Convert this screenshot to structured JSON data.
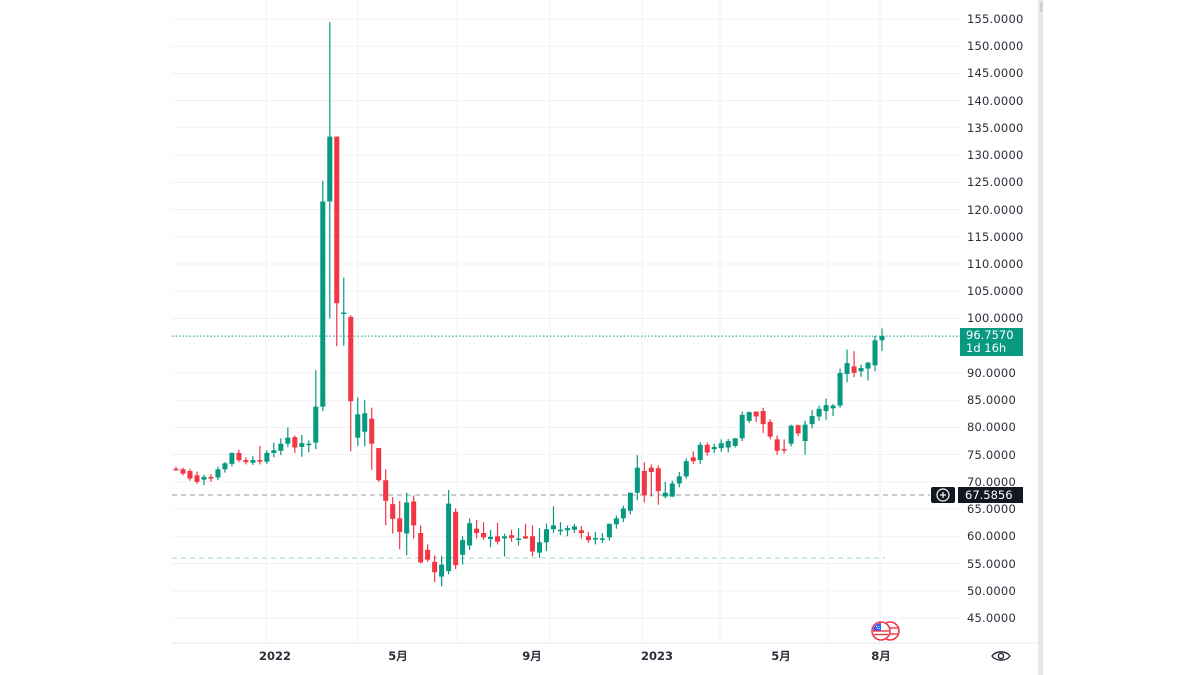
{
  "price_scale": {
    "labels": [
      "155.0000",
      "150.0000",
      "145.0000",
      "140.0000",
      "135.0000",
      "130.0000",
      "125.0000",
      "120.0000",
      "115.0000",
      "110.0000",
      "105.0000",
      "100.0000",
      "90.0000",
      "85.0000",
      "80.0000",
      "75.0000",
      "70.0000",
      "65.0000",
      "60.0000",
      "55.0000",
      "50.0000",
      "45.0000"
    ],
    "last_price": "96.7570",
    "countdown": "1d 16h",
    "crosshair_price": "67.5856",
    "add_alert_icon": "plus-circle-icon"
  },
  "time_scale": {
    "labels": [
      "2022",
      "5月",
      "9月",
      "2023",
      "5月",
      "8月"
    ],
    "settings_icon": "eye-icon"
  },
  "colors": {
    "up": "#089981",
    "down": "#f23645",
    "grid": "#f0f1f4",
    "last_price_line": "#089981",
    "crosshair_line": "#9598a1",
    "level_line": "#a7d3cc",
    "text": "#2a2e39"
  },
  "markers": {
    "event_flag_icon": "us-flag-economic-event-icon"
  },
  "chart_data": {
    "type": "candlestick",
    "title": "",
    "xlabel": "",
    "ylabel": "",
    "ylim": [
      42,
      157
    ],
    "grid": true,
    "interval": "weekly",
    "x_ticks": [
      "2022",
      "5月",
      "9月",
      "2023",
      "5月",
      "8月"
    ],
    "y_ticks": [
      45,
      50,
      55,
      60,
      65,
      70,
      75,
      80,
      85,
      90,
      100,
      105,
      110,
      115,
      120,
      125,
      130,
      135,
      140,
      145,
      150,
      155
    ],
    "horizontal_lines": [
      {
        "name": "last_price",
        "value": 96.757,
        "style": "dotted",
        "color": "#089981"
      },
      {
        "name": "crosshair",
        "value": 67.5856,
        "style": "dashed",
        "color": "#9598a1"
      },
      {
        "name": "level",
        "value": 56.0,
        "style": "dashed",
        "color": "#a7d3cc"
      }
    ],
    "candles": [
      {
        "o": 72.4,
        "h": 72.8,
        "l": 72.0,
        "c": 72.2
      },
      {
        "o": 72.3,
        "h": 72.6,
        "l": 71.2,
        "c": 71.5
      },
      {
        "o": 72.0,
        "h": 72.4,
        "l": 70.2,
        "c": 70.6
      },
      {
        "o": 71.2,
        "h": 71.9,
        "l": 69.6,
        "c": 70.0
      },
      {
        "o": 70.4,
        "h": 71.3,
        "l": 69.4,
        "c": 70.9
      },
      {
        "o": 70.9,
        "h": 71.4,
        "l": 70.0,
        "c": 70.6
      },
      {
        "o": 70.8,
        "h": 72.8,
        "l": 70.3,
        "c": 72.3
      },
      {
        "o": 72.3,
        "h": 73.6,
        "l": 71.7,
        "c": 73.4
      },
      {
        "o": 73.3,
        "h": 75.4,
        "l": 72.8,
        "c": 75.3
      },
      {
        "o": 75.3,
        "h": 75.9,
        "l": 73.6,
        "c": 74.0
      },
      {
        "o": 74.0,
        "h": 74.5,
        "l": 73.2,
        "c": 73.6
      },
      {
        "o": 73.5,
        "h": 74.7,
        "l": 73.1,
        "c": 74.0
      },
      {
        "o": 74.0,
        "h": 76.6,
        "l": 73.2,
        "c": 73.7
      },
      {
        "o": 73.7,
        "h": 75.8,
        "l": 73.3,
        "c": 75.3
      },
      {
        "o": 75.3,
        "h": 77.2,
        "l": 74.5,
        "c": 75.8
      },
      {
        "o": 75.7,
        "h": 78.0,
        "l": 74.9,
        "c": 77.0
      },
      {
        "o": 77.0,
        "h": 80.0,
        "l": 76.4,
        "c": 78.1
      },
      {
        "o": 78.2,
        "h": 78.5,
        "l": 75.3,
        "c": 76.3
      },
      {
        "o": 76.4,
        "h": 78.6,
        "l": 74.6,
        "c": 77.1
      },
      {
        "o": 76.9,
        "h": 77.6,
        "l": 75.4,
        "c": 77.0
      },
      {
        "o": 77.2,
        "h": 90.5,
        "l": 76.0,
        "c": 83.8
      },
      {
        "o": 83.8,
        "h": 125.3,
        "l": 83.0,
        "c": 121.5
      },
      {
        "o": 121.5,
        "h": 154.4,
        "l": 100.0,
        "c": 133.4
      },
      {
        "o": 133.4,
        "h": 133.4,
        "l": 94.9,
        "c": 102.8
      },
      {
        "o": 101.0,
        "h": 107.5,
        "l": 95.0,
        "c": 101.1
      },
      {
        "o": 100.3,
        "h": 100.6,
        "l": 75.6,
        "c": 84.8
      },
      {
        "o": 78.1,
        "h": 85.5,
        "l": 76.6,
        "c": 82.4
      },
      {
        "o": 79.2,
        "h": 85.0,
        "l": 76.5,
        "c": 82.6
      },
      {
        "o": 81.6,
        "h": 83.6,
        "l": 72.2,
        "c": 77.0
      },
      {
        "o": 76.2,
        "h": 74.8,
        "l": 70.0,
        "c": 70.3
      },
      {
        "o": 70.3,
        "h": 72.3,
        "l": 62.0,
        "c": 66.5
      },
      {
        "o": 65.9,
        "h": 67.2,
        "l": 60.5,
        "c": 63.2
      },
      {
        "o": 63.3,
        "h": 66.5,
        "l": 57.6,
        "c": 60.8
      },
      {
        "o": 60.5,
        "h": 68.0,
        "l": 56.5,
        "c": 66.2
      },
      {
        "o": 66.4,
        "h": 67.5,
        "l": 59.6,
        "c": 62.0
      },
      {
        "o": 60.6,
        "h": 62.0,
        "l": 55.0,
        "c": 55.2
      },
      {
        "o": 57.5,
        "h": 58.5,
        "l": 55.3,
        "c": 55.7
      },
      {
        "o": 55.3,
        "h": 56.5,
        "l": 51.6,
        "c": 53.4
      },
      {
        "o": 52.6,
        "h": 56.4,
        "l": 50.8,
        "c": 54.8
      },
      {
        "o": 53.6,
        "h": 68.5,
        "l": 53.0,
        "c": 66.0
      },
      {
        "o": 64.5,
        "h": 65.1,
        "l": 54.0,
        "c": 54.7
      },
      {
        "o": 56.6,
        "h": 60.0,
        "l": 54.8,
        "c": 59.3
      },
      {
        "o": 58.3,
        "h": 63.3,
        "l": 57.5,
        "c": 62.4
      },
      {
        "o": 61.4,
        "h": 63.0,
        "l": 59.6,
        "c": 60.6
      },
      {
        "o": 60.6,
        "h": 62.6,
        "l": 59.3,
        "c": 59.8
      },
      {
        "o": 59.5,
        "h": 61.2,
        "l": 58.0,
        "c": 59.9
      },
      {
        "o": 60.0,
        "h": 62.5,
        "l": 58.5,
        "c": 59.0
      },
      {
        "o": 59.6,
        "h": 60.5,
        "l": 56.3,
        "c": 60.0
      },
      {
        "o": 60.2,
        "h": 61.2,
        "l": 59.0,
        "c": 59.7
      },
      {
        "o": 59.5,
        "h": 61.5,
        "l": 58.3,
        "c": 59.6
      },
      {
        "o": 60.0,
        "h": 62.3,
        "l": 59.5,
        "c": 59.6
      },
      {
        "o": 60.0,
        "h": 62.0,
        "l": 56.3,
        "c": 57.2
      },
      {
        "o": 57.0,
        "h": 61.5,
        "l": 56.0,
        "c": 58.9
      },
      {
        "o": 58.9,
        "h": 62.3,
        "l": 57.3,
        "c": 61.3
      },
      {
        "o": 61.3,
        "h": 65.5,
        "l": 60.6,
        "c": 62.0
      },
      {
        "o": 61.0,
        "h": 62.6,
        "l": 60.2,
        "c": 61.2
      },
      {
        "o": 61.1,
        "h": 62.0,
        "l": 60.0,
        "c": 61.5
      },
      {
        "o": 61.2,
        "h": 62.3,
        "l": 60.6,
        "c": 61.8
      },
      {
        "o": 61.1,
        "h": 61.9,
        "l": 59.6,
        "c": 60.6
      },
      {
        "o": 60.0,
        "h": 60.8,
        "l": 58.8,
        "c": 59.3
      },
      {
        "o": 59.4,
        "h": 60.8,
        "l": 58.5,
        "c": 59.7
      },
      {
        "o": 59.5,
        "h": 60.6,
        "l": 58.8,
        "c": 59.6
      },
      {
        "o": 59.8,
        "h": 62.3,
        "l": 59.2,
        "c": 62.3
      },
      {
        "o": 62.2,
        "h": 63.8,
        "l": 61.4,
        "c": 63.3
      },
      {
        "o": 63.3,
        "h": 65.6,
        "l": 62.6,
        "c": 65.1
      },
      {
        "o": 64.7,
        "h": 68.0,
        "l": 64.0,
        "c": 68.0
      },
      {
        "o": 68.0,
        "h": 74.9,
        "l": 66.6,
        "c": 72.6
      },
      {
        "o": 72.0,
        "h": 73.6,
        "l": 66.2,
        "c": 67.5
      },
      {
        "o": 72.6,
        "h": 73.2,
        "l": 67.3,
        "c": 71.8
      },
      {
        "o": 72.5,
        "h": 73.0,
        "l": 65.8,
        "c": 68.3
      },
      {
        "o": 67.3,
        "h": 70.0,
        "l": 67.0,
        "c": 68.0
      },
      {
        "o": 67.3,
        "h": 70.2,
        "l": 67.2,
        "c": 69.7
      },
      {
        "o": 69.7,
        "h": 71.8,
        "l": 69.0,
        "c": 71.0
      },
      {
        "o": 71.0,
        "h": 74.3,
        "l": 70.6,
        "c": 73.8
      },
      {
        "o": 74.5,
        "h": 75.6,
        "l": 73.3,
        "c": 73.8
      },
      {
        "o": 74.0,
        "h": 77.3,
        "l": 73.3,
        "c": 76.8
      },
      {
        "o": 76.8,
        "h": 77.2,
        "l": 74.8,
        "c": 75.4
      },
      {
        "o": 76.0,
        "h": 77.0,
        "l": 75.3,
        "c": 76.4
      },
      {
        "o": 76.2,
        "h": 77.8,
        "l": 75.5,
        "c": 77.1
      },
      {
        "o": 76.3,
        "h": 77.9,
        "l": 75.4,
        "c": 77.5
      },
      {
        "o": 76.6,
        "h": 78.0,
        "l": 76.3,
        "c": 78.0
      },
      {
        "o": 78.0,
        "h": 82.9,
        "l": 77.5,
        "c": 82.3
      },
      {
        "o": 81.2,
        "h": 82.9,
        "l": 80.8,
        "c": 82.8
      },
      {
        "o": 82.9,
        "h": 82.9,
        "l": 81.0,
        "c": 82.0
      },
      {
        "o": 83.0,
        "h": 83.6,
        "l": 79.0,
        "c": 80.6
      },
      {
        "o": 81.0,
        "h": 81.5,
        "l": 77.8,
        "c": 78.3
      },
      {
        "o": 77.8,
        "h": 78.5,
        "l": 75.0,
        "c": 75.7
      },
      {
        "o": 76.0,
        "h": 77.8,
        "l": 75.2,
        "c": 75.9
      },
      {
        "o": 77.0,
        "h": 80.5,
        "l": 76.5,
        "c": 80.3
      },
      {
        "o": 80.4,
        "h": 80.5,
        "l": 78.4,
        "c": 78.9
      },
      {
        "o": 77.5,
        "h": 81.2,
        "l": 75.0,
        "c": 80.5
      },
      {
        "o": 80.6,
        "h": 83.2,
        "l": 79.8,
        "c": 82.1
      },
      {
        "o": 82.0,
        "h": 84.0,
        "l": 81.2,
        "c": 83.4
      },
      {
        "o": 83.0,
        "h": 85.3,
        "l": 81.4,
        "c": 84.1
      },
      {
        "o": 83.5,
        "h": 84.3,
        "l": 82.1,
        "c": 84.0
      },
      {
        "o": 84.0,
        "h": 90.8,
        "l": 83.6,
        "c": 90.0
      },
      {
        "o": 89.8,
        "h": 94.3,
        "l": 88.3,
        "c": 91.8
      },
      {
        "o": 91.2,
        "h": 94.0,
        "l": 89.2,
        "c": 90.0
      },
      {
        "o": 90.3,
        "h": 91.5,
        "l": 89.3,
        "c": 90.9
      },
      {
        "o": 90.8,
        "h": 92.0,
        "l": 88.6,
        "c": 91.9
      },
      {
        "o": 91.4,
        "h": 96.8,
        "l": 90.3,
        "c": 96.0
      },
      {
        "o": 96.0,
        "h": 98.2,
        "l": 94.0,
        "c": 96.757
      }
    ]
  }
}
